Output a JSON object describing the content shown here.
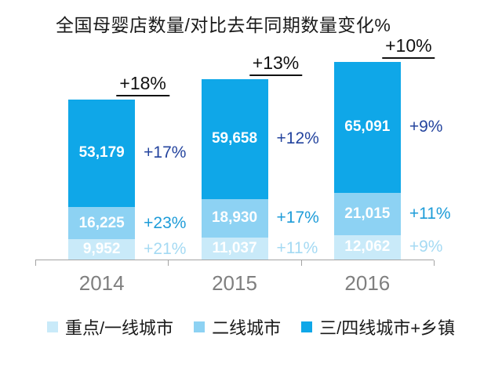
{
  "title": "全国母婴店数量/对比去年同期数量变化%",
  "chart_data": {
    "type": "bar",
    "stacked": true,
    "title": "全国母婴店数量/对比去年同期数量变化%",
    "categories": [
      "2014",
      "2015",
      "2016"
    ],
    "series": [
      {
        "name": "重点/一线城市",
        "color": "#c9eaf9",
        "values": [
          9952,
          11037,
          12062
        ],
        "value_labels": [
          "9,952",
          "11,037",
          "12,062"
        ],
        "growth": [
          "+21%",
          "+11%",
          "+9%"
        ],
        "growth_color": "#a5daf3"
      },
      {
        "name": "二线城市",
        "color": "#8dd2f3",
        "values": [
          16225,
          18930,
          21015
        ],
        "value_labels": [
          "16,225",
          "18,930",
          "21,015"
        ],
        "growth": [
          "+23%",
          "+17%",
          "+11%"
        ],
        "growth_color": "#1e9cd8"
      },
      {
        "name": "三/四线城市+乡镇",
        "color": "#0fa7e8",
        "values": [
          53179,
          59658,
          65091
        ],
        "value_labels": [
          "53,179",
          "59,658",
          "65,091"
        ],
        "growth": [
          "+17%",
          "+12%",
          "+9%"
        ],
        "growth_color": "#24449e"
      }
    ],
    "totals": [
      79356,
      89625,
      98168
    ],
    "total_growth": [
      "+18%",
      "+13%",
      "+10%"
    ],
    "xlabel": "",
    "ylabel": "",
    "ylim": [
      0,
      98168
    ],
    "grid": false,
    "legend_position": "bottom",
    "value_labels_shown": true
  }
}
